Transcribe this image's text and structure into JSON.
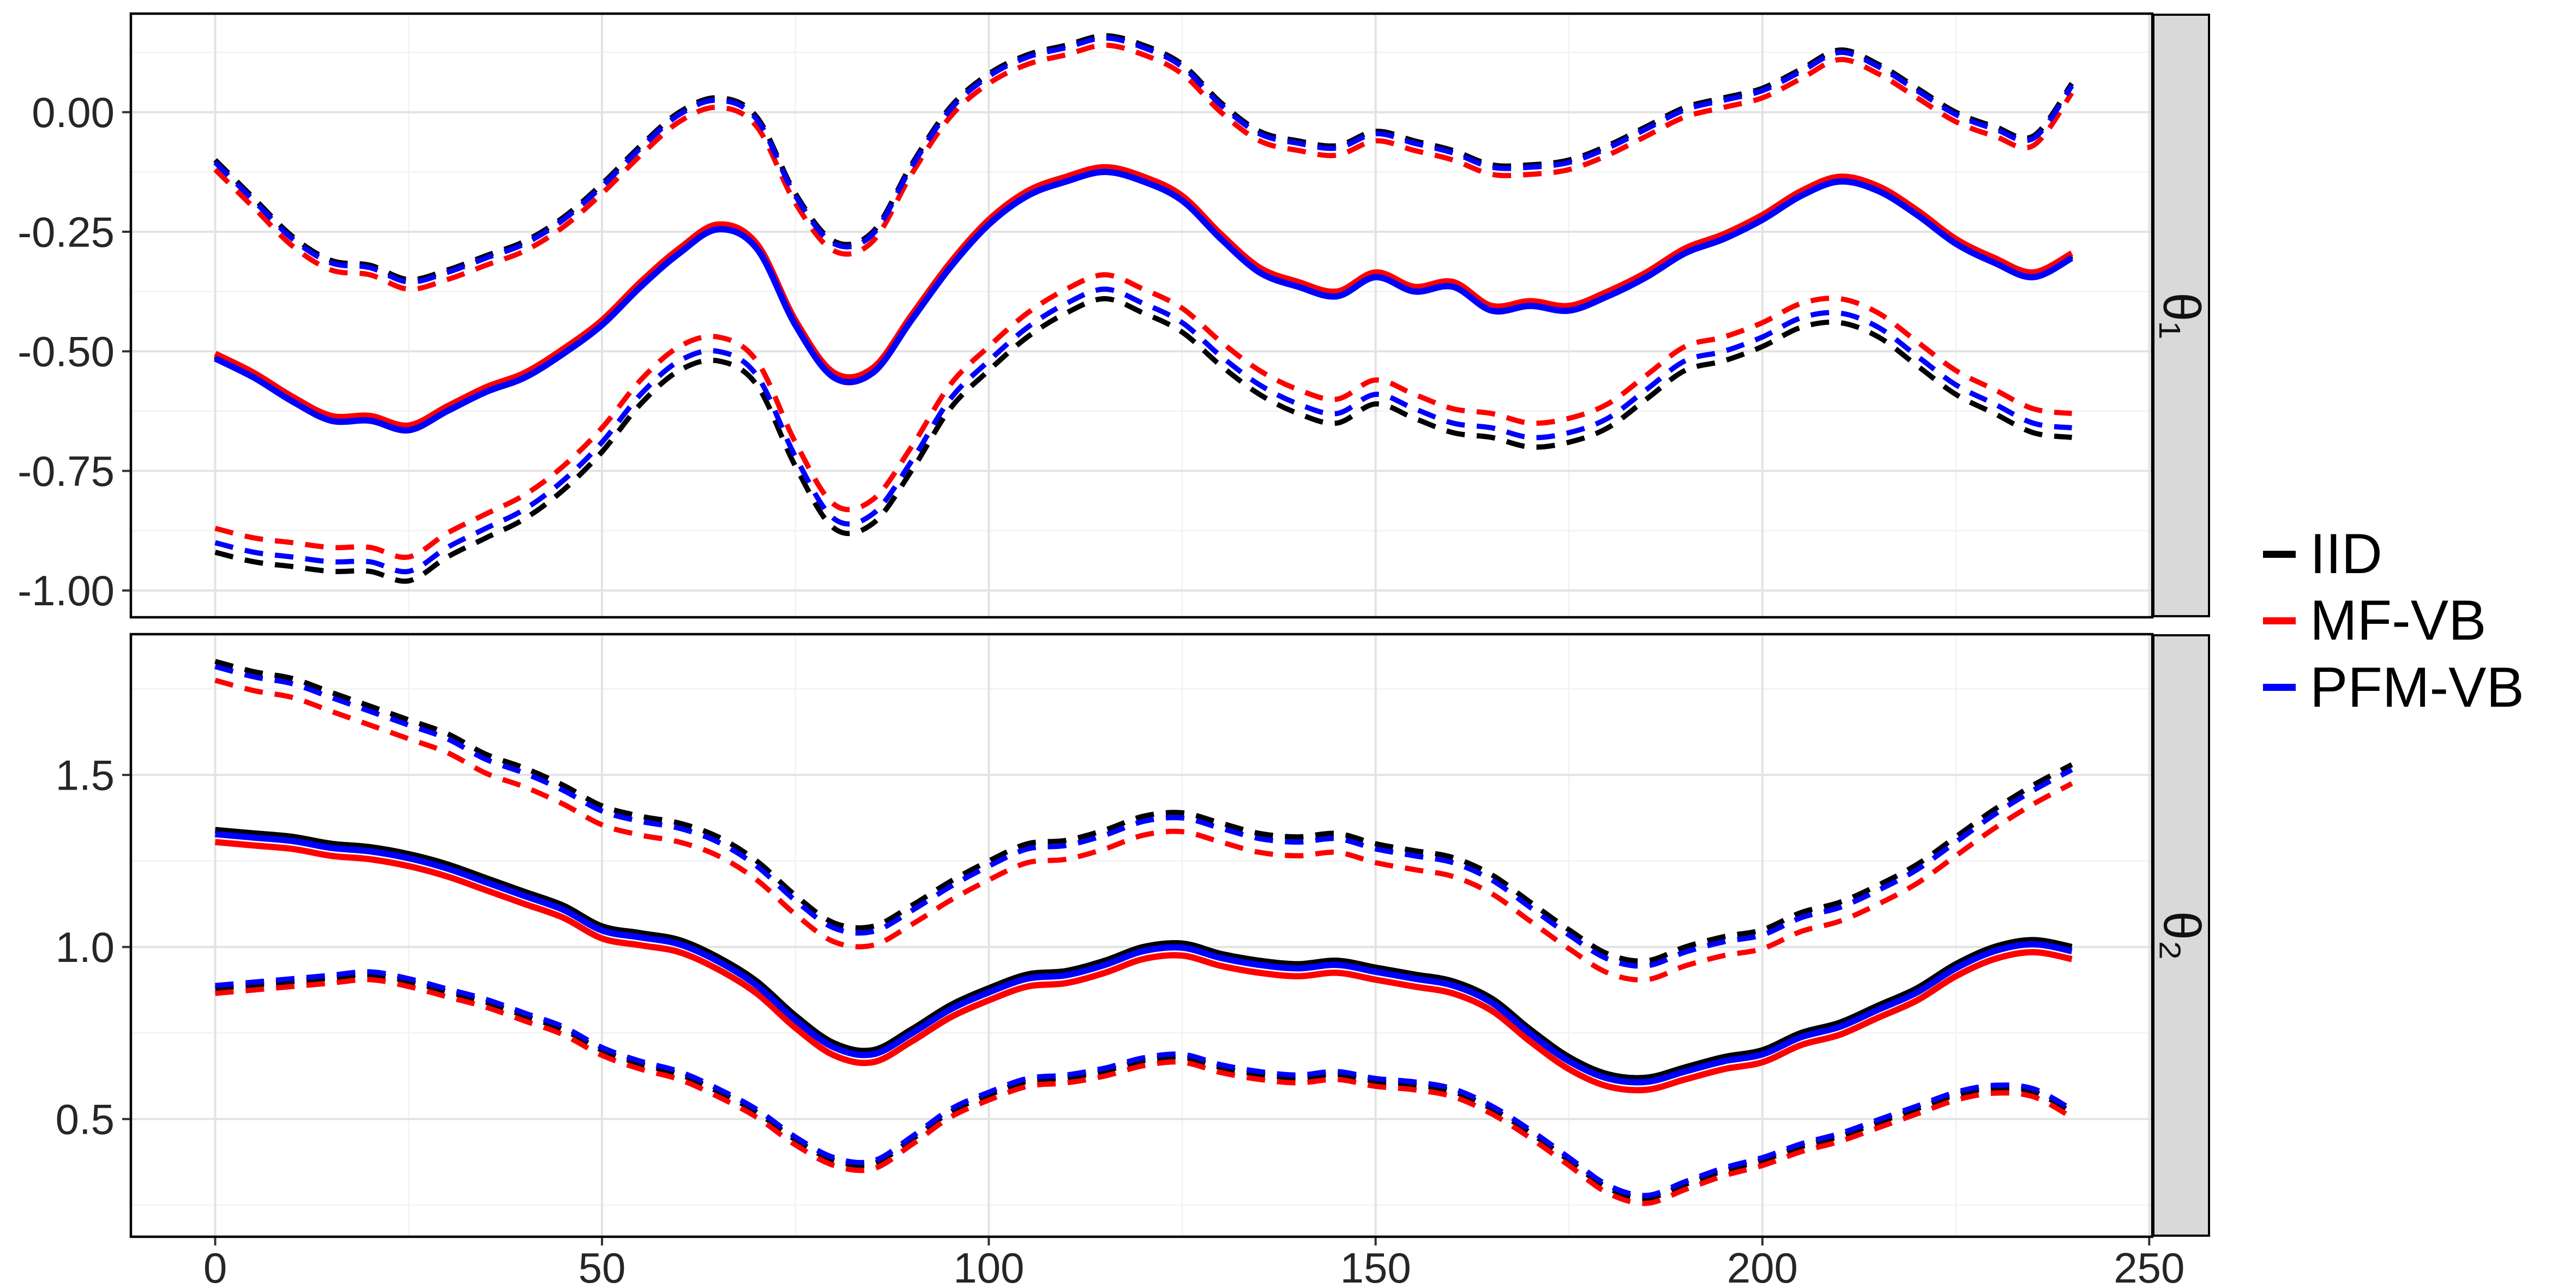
{
  "legend": {
    "items": [
      {
        "label": "IID",
        "color": "#000000"
      },
      {
        "label": "MF-VB",
        "color": "#FF0000"
      },
      {
        "label": "PFM-VB",
        "color": "#0000FF"
      }
    ]
  },
  "chart_data": {
    "type": "line",
    "title": "",
    "xlabel": "",
    "ylabel": "",
    "xlim": [
      -10.9,
      250.4
    ],
    "xticks": [
      0,
      50,
      100,
      150,
      200,
      250
    ],
    "xtick_labels": [
      "0",
      "50",
      "100",
      "150",
      "200",
      "250"
    ],
    "x": [
      0,
      5,
      10,
      15,
      20,
      25,
      30,
      35,
      40,
      45,
      50,
      55,
      60,
      65,
      70,
      75,
      80,
      85,
      90,
      95,
      100,
      105,
      110,
      115,
      120,
      125,
      130,
      135,
      140,
      145,
      150,
      155,
      160,
      165,
      170,
      175,
      180,
      185,
      190,
      195,
      200,
      205,
      210,
      215,
      220,
      225,
      230,
      235,
      240
    ],
    "panels": [
      {
        "name": "theta1",
        "strip_label": "θ₁",
        "ylim": [
          -1.056,
          0.206
        ],
        "yticks": [
          0.0,
          -0.25,
          -0.5,
          -0.75,
          -1.0
        ],
        "ytick_labels": [
          "0.00",
          "-0.25",
          "-0.50",
          "-0.75",
          "-1.00"
        ],
        "base": {
          "mean": [
            -0.51,
            -0.55,
            -0.6,
            -0.64,
            -0.64,
            -0.66,
            -0.62,
            -0.58,
            -0.55,
            -0.5,
            -0.44,
            -0.36,
            -0.29,
            -0.24,
            -0.28,
            -0.44,
            -0.55,
            -0.54,
            -0.43,
            -0.32,
            -0.23,
            -0.17,
            -0.14,
            -0.12,
            -0.14,
            -0.18,
            -0.26,
            -0.33,
            -0.36,
            -0.38,
            -0.34,
            -0.37,
            -0.36,
            -0.41,
            -0.4,
            -0.41,
            -0.38,
            -0.34,
            -0.29,
            -0.26,
            -0.22,
            -0.17,
            -0.14,
            -0.16,
            -0.21,
            -0.27,
            -0.31,
            -0.34,
            -0.3
          ],
          "upper": [
            -0.1,
            -0.18,
            -0.26,
            -0.31,
            -0.32,
            -0.35,
            -0.33,
            -0.3,
            -0.27,
            -0.22,
            -0.15,
            -0.07,
            0.0,
            0.03,
            -0.01,
            -0.17,
            -0.27,
            -0.25,
            -0.11,
            0.01,
            0.08,
            0.12,
            0.14,
            0.16,
            0.14,
            0.1,
            0.02,
            -0.04,
            -0.06,
            -0.07,
            -0.04,
            -0.06,
            -0.08,
            -0.11,
            -0.11,
            -0.1,
            -0.07,
            -0.03,
            0.01,
            0.03,
            0.05,
            0.09,
            0.13,
            0.1,
            0.05,
            0.0,
            -0.03,
            -0.05,
            0.06
          ],
          "lower": [
            -0.92,
            -0.94,
            -0.95,
            -0.96,
            -0.96,
            -0.98,
            -0.93,
            -0.89,
            -0.85,
            -0.79,
            -0.71,
            -0.61,
            -0.54,
            -0.52,
            -0.57,
            -0.74,
            -0.87,
            -0.86,
            -0.75,
            -0.62,
            -0.54,
            -0.47,
            -0.42,
            -0.39,
            -0.42,
            -0.46,
            -0.53,
            -0.59,
            -0.63,
            -0.65,
            -0.61,
            -0.64,
            -0.67,
            -0.68,
            -0.7,
            -0.69,
            -0.66,
            -0.6,
            -0.54,
            -0.52,
            -0.49,
            -0.45,
            -0.44,
            -0.47,
            -0.53,
            -0.59,
            -0.63,
            -0.67,
            -0.68
          ]
        },
        "series": [
          {
            "name": "IID",
            "color": "#000000",
            "offsets": {
              "mean": 0.0,
              "upper": 0.0,
              "lower": 0.0
            }
          },
          {
            "name": "MF-VB",
            "color": "#FF0000",
            "offsets": {
              "mean": 0.005,
              "upper": -0.02,
              "lower": 0.05
            }
          },
          {
            "name": "PFM-VB",
            "color": "#0000FF",
            "offsets": {
              "mean": -0.005,
              "upper": -0.005,
              "lower": 0.02
            }
          }
        ]
      },
      {
        "name": "theta2",
        "strip_label": "θ₂",
        "ylim": [
          0.158,
          1.909
        ],
        "yticks": [
          1.5,
          1.0,
          0.5
        ],
        "ytick_labels": [
          "1.5",
          "1.0",
          "0.5"
        ],
        "base": {
          "mean": [
            1.34,
            1.33,
            1.32,
            1.3,
            1.29,
            1.27,
            1.24,
            1.2,
            1.16,
            1.12,
            1.06,
            1.04,
            1.02,
            0.97,
            0.9,
            0.8,
            0.72,
            0.7,
            0.76,
            0.83,
            0.88,
            0.92,
            0.93,
            0.96,
            1.0,
            1.01,
            0.98,
            0.96,
            0.95,
            0.96,
            0.94,
            0.92,
            0.9,
            0.85,
            0.76,
            0.68,
            0.63,
            0.62,
            0.65,
            0.68,
            0.7,
            0.75,
            0.78,
            0.83,
            0.88,
            0.95,
            1.0,
            1.02,
            1.0
          ],
          "upper": [
            1.83,
            1.8,
            1.78,
            1.74,
            1.7,
            1.66,
            1.62,
            1.56,
            1.52,
            1.47,
            1.41,
            1.38,
            1.36,
            1.32,
            1.25,
            1.15,
            1.07,
            1.06,
            1.12,
            1.19,
            1.25,
            1.3,
            1.31,
            1.34,
            1.38,
            1.39,
            1.36,
            1.33,
            1.32,
            1.33,
            1.3,
            1.28,
            1.26,
            1.21,
            1.13,
            1.05,
            0.98,
            0.96,
            1.0,
            1.03,
            1.05,
            1.1,
            1.13,
            1.18,
            1.24,
            1.32,
            1.4,
            1.47,
            1.53
          ],
          "lower": [
            0.88,
            0.89,
            0.9,
            0.91,
            0.92,
            0.9,
            0.87,
            0.84,
            0.8,
            0.76,
            0.7,
            0.66,
            0.63,
            0.58,
            0.52,
            0.44,
            0.38,
            0.37,
            0.44,
            0.52,
            0.57,
            0.61,
            0.62,
            0.64,
            0.67,
            0.68,
            0.65,
            0.63,
            0.62,
            0.63,
            0.61,
            0.6,
            0.58,
            0.53,
            0.46,
            0.38,
            0.3,
            0.27,
            0.31,
            0.35,
            0.38,
            0.42,
            0.45,
            0.49,
            0.53,
            0.57,
            0.59,
            0.58,
            0.52
          ]
        },
        "series": [
          {
            "name": "IID",
            "color": "#000000",
            "offsets": {
              "mean": 0.0,
              "upper": 0.0,
              "lower": 0.0
            }
          },
          {
            "name": "MF-VB",
            "color": "#FF0000",
            "offsets": {
              "mean": -0.035,
              "upper": -0.055,
              "lower": -0.015
            }
          },
          {
            "name": "PFM-VB",
            "color": "#0000FF",
            "offsets": {
              "mean": -0.012,
              "upper": -0.015,
              "lower": 0.008
            }
          }
        ]
      }
    ]
  }
}
